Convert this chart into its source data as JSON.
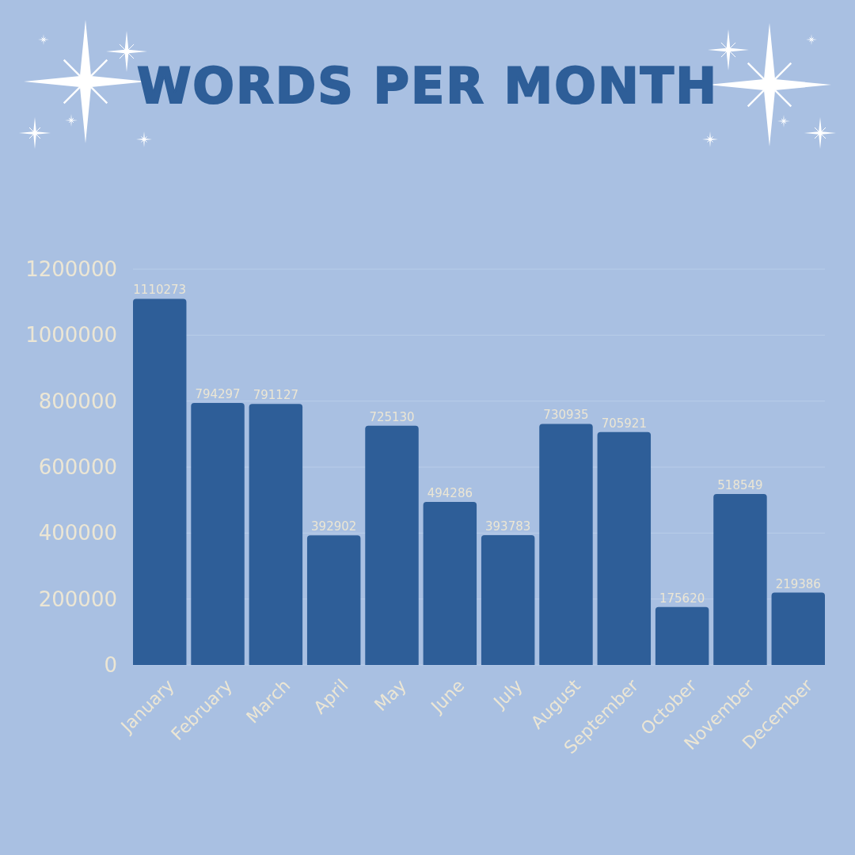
{
  "chart_data": {
    "type": "bar",
    "title": "WORDS PER MONTH",
    "categories": [
      "January",
      "February",
      "March",
      "April",
      "May",
      "June",
      "July",
      "August",
      "September",
      "October",
      "November",
      "December"
    ],
    "values": [
      1110273,
      794297,
      791127,
      392902,
      725130,
      494286,
      393783,
      730935,
      705921,
      175620,
      518549,
      219386
    ],
    "color": "#2e5e98",
    "ylim": [
      0,
      1200000
    ],
    "yticks": [
      0,
      200000,
      400000,
      600000,
      800000,
      1000000,
      1200000
    ],
    "grid": "y",
    "data_labels": true
  }
}
